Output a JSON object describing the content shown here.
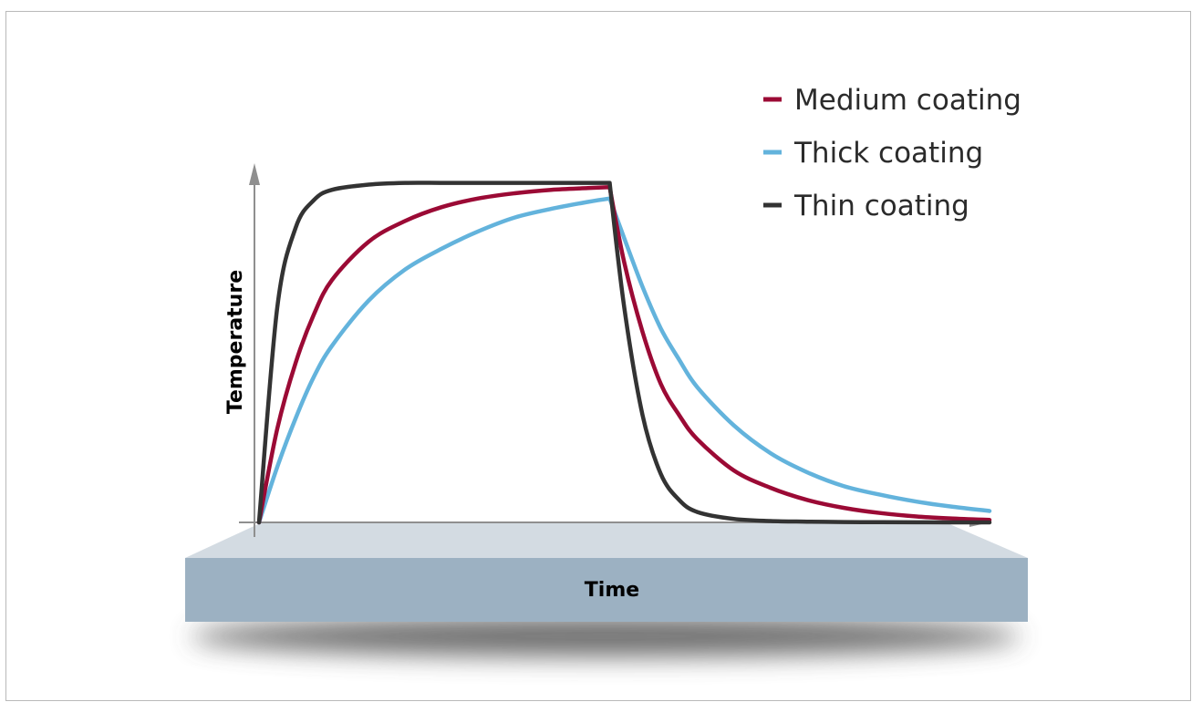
{
  "chart_data": {
    "type": "line",
    "xlabel": "Time",
    "ylabel": "Temperature",
    "x_ticks_shown": false,
    "y_ticks_shown": false,
    "grid": false,
    "legend_position": "top-right",
    "xlim": [
      0,
      10
    ],
    "ylim": [
      0,
      1
    ],
    "x": [
      0,
      0.25,
      0.5,
      0.75,
      1,
      1.5,
      2,
      2.5,
      3,
      3.5,
      4,
      4.5,
      4.8,
      5,
      5.25,
      5.5,
      5.75,
      6,
      6.5,
      7,
      7.5,
      8,
      8.5,
      9,
      9.5,
      10
    ],
    "series": [
      {
        "name": "Medium coating",
        "color": "#9b0a35",
        "values": [
          0,
          0.27,
          0.46,
          0.6,
          0.7,
          0.81,
          0.87,
          0.91,
          0.935,
          0.95,
          0.96,
          0.965,
          0.968,
          0.75,
          0.55,
          0.4,
          0.31,
          0.24,
          0.15,
          0.1,
          0.065,
          0.042,
          0.027,
          0.017,
          0.011,
          0.007
        ]
      },
      {
        "name": "Thick coating",
        "color": "#63b3dc",
        "values": [
          0,
          0.16,
          0.3,
          0.42,
          0.51,
          0.64,
          0.73,
          0.79,
          0.84,
          0.88,
          0.905,
          0.925,
          0.935,
          0.82,
          0.68,
          0.56,
          0.47,
          0.39,
          0.28,
          0.2,
          0.145,
          0.105,
          0.08,
          0.06,
          0.045,
          0.033
        ]
      },
      {
        "name": "Thin coating",
        "color": "#333333",
        "values": [
          0,
          0.62,
          0.85,
          0.93,
          0.96,
          0.975,
          0.98,
          0.98,
          0.98,
          0.98,
          0.98,
          0.98,
          0.98,
          0.62,
          0.31,
          0.14,
          0.065,
          0.03,
          0.01,
          0.004,
          0.002,
          0.001,
          0.0005,
          0.0002,
          0.0001,
          0
        ]
      }
    ]
  },
  "legend": {
    "items": [
      {
        "label": "Medium coating",
        "color": "#9b0a35"
      },
      {
        "label": "Thick coating",
        "color": "#63b3dc"
      },
      {
        "label": "Thin coating",
        "color": "#333333"
      }
    ]
  },
  "colors": {
    "axis": "#8f8f8f",
    "platform_top": "#d3dbe2",
    "platform_front": "#9cb1c2",
    "platform_shadow": "#555555"
  }
}
